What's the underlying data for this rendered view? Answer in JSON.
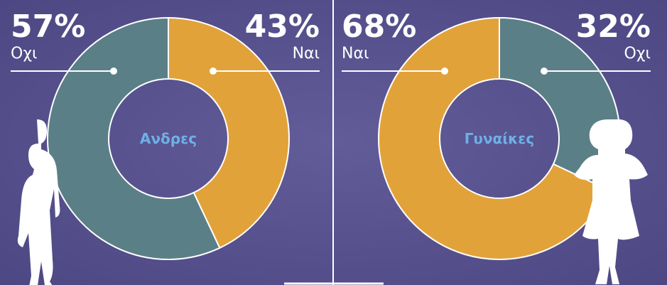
{
  "chart_data": [
    {
      "type": "pie",
      "title": "Ανδρες",
      "categories": [
        "Οχι",
        "Ναι"
      ],
      "values": [
        57,
        43
      ],
      "value_labels": [
        "57%",
        "43%"
      ],
      "colors": [
        "#5b7f87",
        "#e2a23a"
      ]
    },
    {
      "type": "pie",
      "title": "Γυναίκες",
      "categories": [
        "Ναι",
        "Οχι"
      ],
      "values": [
        68,
        32
      ],
      "value_labels": [
        "68%",
        "32%"
      ],
      "colors": [
        "#e2a23a",
        "#5b7f87"
      ]
    }
  ]
}
